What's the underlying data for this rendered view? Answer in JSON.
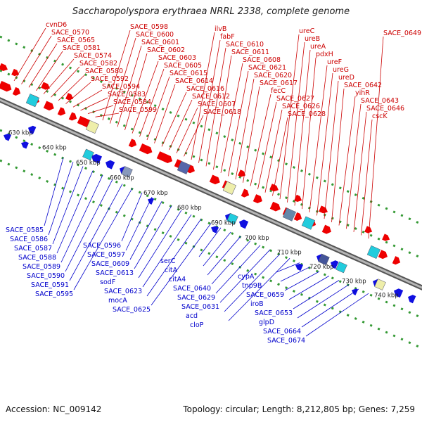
{
  "title": "Saccharopolyspora erythraea NRRL 2338, complete genome",
  "footer": {
    "accession": "Accession: NC_009142",
    "topology": "Topology: circular; Length: 8,212,805 bp; Genes: 7,259"
  },
  "colors": {
    "forward_strand": "#ee0000",
    "reverse_strand": "#1010e0",
    "backbone": "#888888",
    "tick_dot": "#339933",
    "forward_label": "#cc0000",
    "reverse_label": "#0000cc"
  },
  "position_ticks": [
    "630 kbp",
    "640 kbp",
    "650 kbp",
    "660 kbp",
    "670 kbp",
    "680 kbp",
    "690 kbp",
    "700 kbp",
    "710 kbp",
    "720 kbp",
    "730 kbp",
    "740 kbp"
  ],
  "forward_labels": [
    "cvnD6",
    "SACE_0570",
    "SACE_0565",
    "SACE_0581",
    "SACE_0574",
    "SACE_0582",
    "SACE_0580",
    "SACE_0592",
    "SACE_0594",
    "SACE_0583",
    "SACE_0584",
    "SACE_0599",
    "SACE_0598",
    "SACE_0600",
    "SACE_0601",
    "SACE_0602",
    "SACE_0603",
    "SACE_0605",
    "SACE_0615",
    "SACE_0614",
    "SACE_0616",
    "SACE_0612",
    "SACE_0607",
    "SACE_0618",
    "ilvB",
    "fabF",
    "SACE_0610",
    "SACE_0611",
    "SACE_0608",
    "SACE_0621",
    "SACE_0620",
    "SACE_0617",
    "fecC",
    "SACE_0627",
    "SACE_0626",
    "SACE_0628",
    "ureC",
    "ureB",
    "ureA",
    "pdxH",
    "ureF",
    "ureG",
    "ureD",
    "SACE_0642",
    "yihR",
    "SACE_0643",
    "SACE_0646",
    "cscK",
    "SACE_0649"
  ],
  "reverse_labels": [
    "SACE_0585",
    "SACE_0586",
    "SACE_0587",
    "SACE_0588",
    "SACE_0589",
    "SACE_0590",
    "SACE_0591",
    "SACE_0595",
    "SACE_0596",
    "SACE_0597",
    "SACE_0609",
    "SACE_0613",
    "sodF",
    "SACE_0623",
    "mocA",
    "SACE_0625",
    "serC",
    "citA",
    "citA4",
    "SACE_0640",
    "SACE_0629",
    "SACE_0631",
    "acd",
    "cloP",
    "cypA",
    "tnp9B",
    "SACE_0659",
    "iroB",
    "SACE_0653",
    "glpD",
    "SACE_0664",
    "SACE_0674"
  ]
}
